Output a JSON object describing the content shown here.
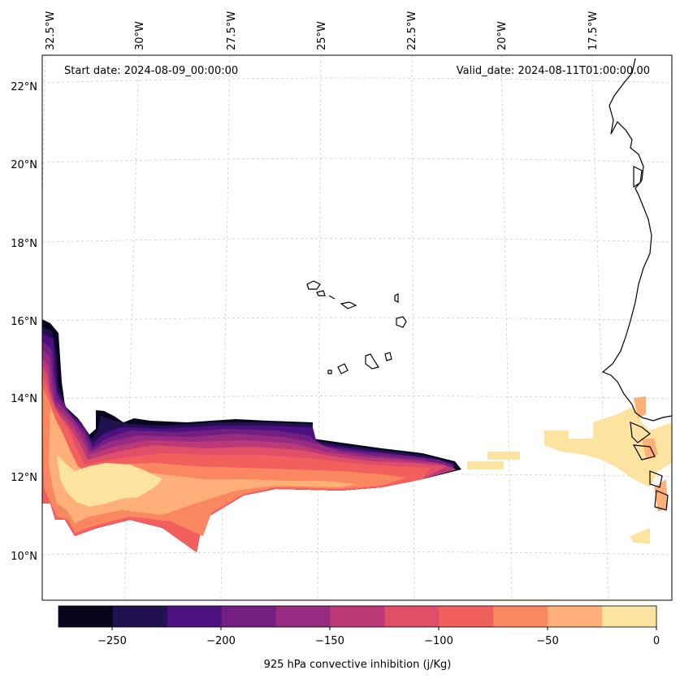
{
  "header": {
    "start_date": "Start date: 2024-08-09_00:00:00",
    "valid_date": "Valid_date: 2024-08-11T01:00:00.00"
  },
  "longitude_labels": [
    "32.5°W",
    "30°W",
    "27.5°W",
    "25°W",
    "22.5°W",
    "20°W",
    "17.5°W"
  ],
  "latitude_labels": [
    "22°N",
    "20°N",
    "18°N",
    "16°N",
    "14°N",
    "12°N",
    "10°N"
  ],
  "colorbar": {
    "title": "925 hPa convective inhibition (j/Kg)",
    "tick_labels": [
      "−250",
      "−200",
      "−150",
      "−100",
      "−50",
      "0"
    ],
    "colors": [
      "#07061c",
      "#221150",
      "#4c1080",
      "#721f81",
      "#972c80",
      "#bc3978",
      "#e04f67",
      "#f1605d",
      "#fb8761",
      "#feb078",
      "#fde3a0"
    ]
  }
}
